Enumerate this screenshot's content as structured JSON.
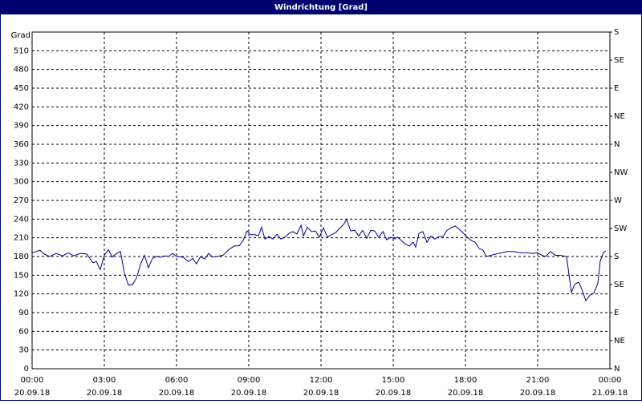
{
  "chart_data": {
    "type": "line",
    "title": "Windrichtung [Grad]",
    "ylabel": "Grad",
    "xlim": [
      0,
      24
    ],
    "ylim": [
      0,
      540
    ],
    "y2lim": [
      0,
      540
    ],
    "grid": true,
    "xticks": [
      {
        "value": 0,
        "label": "00:00",
        "sublabel": "20.09.18"
      },
      {
        "value": 3,
        "label": "03:00",
        "sublabel": "20.09.18"
      },
      {
        "value": 6,
        "label": "06:00",
        "sublabel": "20.09.18"
      },
      {
        "value": 9,
        "label": "09:00",
        "sublabel": "20.09.18"
      },
      {
        "value": 12,
        "label": "12:00",
        "sublabel": "20.09.18"
      },
      {
        "value": 15,
        "label": "15:00",
        "sublabel": "20.09.18"
      },
      {
        "value": 18,
        "label": "18:00",
        "sublabel": "20.09.18"
      },
      {
        "value": 21,
        "label": "21:00",
        "sublabel": "20.09.18"
      },
      {
        "value": 24,
        "label": "00:00",
        "sublabel": "21.09.18"
      }
    ],
    "yticks": [
      0,
      30,
      60,
      90,
      120,
      150,
      180,
      210,
      240,
      270,
      300,
      330,
      360,
      390,
      420,
      450,
      480,
      510
    ],
    "y2ticks": [
      {
        "value": 0,
        "label": "N"
      },
      {
        "value": 45,
        "label": "NE"
      },
      {
        "value": 90,
        "label": "E"
      },
      {
        "value": 135,
        "label": "SE"
      },
      {
        "value": 180,
        "label": "S"
      },
      {
        "value": 225,
        "label": "SW"
      },
      {
        "value": 270,
        "label": "W"
      },
      {
        "value": 315,
        "label": "NW"
      },
      {
        "value": 360,
        "label": "N"
      },
      {
        "value": 405,
        "label": "NE"
      },
      {
        "value": 450,
        "label": "E"
      },
      {
        "value": 495,
        "label": "SE"
      },
      {
        "value": 540,
        "label": "S"
      }
    ],
    "series": [
      {
        "color": "#00008b",
        "x": [
          0,
          0.33,
          0.5,
          0.73,
          1,
          1.27,
          1.5,
          1.73,
          2,
          2.27,
          2.4,
          2.53,
          2.67,
          2.83,
          3,
          3.17,
          3.33,
          3.5,
          3.67,
          3.83,
          4,
          4.17,
          4.33,
          4.5,
          4.67,
          4.83,
          5,
          5.17,
          5.33,
          5.5,
          5.67,
          5.83,
          6,
          6.27,
          6.5,
          6.67,
          6.83,
          7,
          7.17,
          7.33,
          7.5,
          7.67,
          7.93,
          8.17,
          8.4,
          8.6,
          8.77,
          8.93,
          9.07,
          9.27,
          9.4,
          9.53,
          9.67,
          9.83,
          10,
          10.17,
          10.33,
          10.5,
          10.67,
          10.83,
          11,
          11.17,
          11.27,
          11.43,
          11.6,
          11.77,
          11.93,
          12.1,
          12.27,
          12.43,
          12.6,
          12.77,
          12.93,
          13.07,
          13.23,
          13.4,
          13.57,
          13.73,
          13.9,
          14.07,
          14.23,
          14.4,
          14.57,
          14.73,
          14.9,
          15.07,
          15.17,
          15.33,
          15.5,
          15.67,
          15.83,
          15.93,
          16.07,
          16.23,
          16.4,
          16.57,
          16.73,
          16.9,
          17.07,
          17.23,
          17.4,
          17.57,
          17.73,
          17.9,
          18.07,
          18.23,
          18.4,
          18.57,
          18.73,
          18.87,
          19.07,
          19.27,
          19.5,
          19.73,
          20,
          20.27,
          20.53,
          20.8,
          21,
          21.17,
          21.33,
          21.53,
          21.73,
          21.93,
          22.2,
          22.4,
          22.53,
          22.7,
          22.83,
          23,
          23.17,
          23.33,
          23.5,
          23.6,
          23.73,
          23.83
        ],
        "values": [
          186,
          190,
          184,
          180,
          185,
          181,
          186,
          181,
          185,
          184,
          177,
          170,
          172,
          159,
          182,
          191,
          179,
          185,
          188,
          154,
          134,
          135,
          145,
          167,
          182,
          162,
          177,
          180,
          179,
          181,
          180,
          185,
          180,
          179,
          172,
          177,
          168,
          180,
          176,
          185,
          179,
          180,
          182,
          191,
          197,
          197,
          206,
          221,
          215,
          215,
          213,
          227,
          208,
          212,
          208,
          216,
          208,
          211,
          217,
          220,
          216,
          230,
          213,
          227,
          220,
          221,
          211,
          226,
          211,
          215,
          218,
          225,
          231,
          240,
          221,
          222,
          213,
          222,
          209,
          222,
          221,
          211,
          220,
          207,
          211,
          208,
          211,
          206,
          200,
          197,
          203,
          195,
          217,
          220,
          203,
          213,
          208,
          212,
          212,
          222,
          226,
          229,
          224,
          218,
          211,
          206,
          203,
          193,
          190,
          180,
          182,
          184,
          186,
          188,
          188,
          186,
          186,
          185,
          186,
          182,
          180,
          188,
          182,
          182,
          180,
          122,
          135,
          139,
          128,
          109,
          118,
          121,
          137,
          173,
          186,
          189
        ]
      }
    ]
  }
}
